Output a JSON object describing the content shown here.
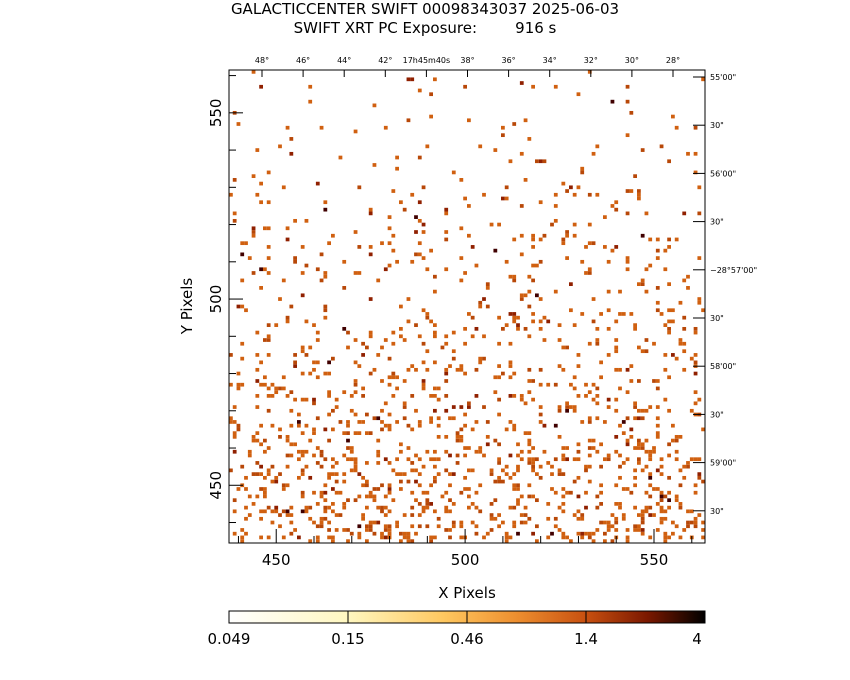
{
  "header": {
    "line1": "GALACTICCENTER SWIFT 00098343037 2025-06-03",
    "line2": "SWIFT XRT PC Exposure:        916 s"
  },
  "colorbar": {
    "tick_labels": [
      "0.049",
      "0.15",
      "0.46",
      "1.4",
      "4"
    ],
    "colors": [
      "#ffffff",
      "#fff3b0",
      "#ffd060",
      "#f0a030",
      "#d86818",
      "#a83a08",
      "#5a1000",
      "#000000"
    ]
  },
  "chart_data": {
    "type": "heatmap",
    "xlabel": "X Pixels",
    "ylabel": "Y Pixels",
    "xlim": [
      437.5,
      563.5
    ],
    "ylim": [
      434.5,
      561.5
    ],
    "x_ticks": [
      450,
      500,
      550
    ],
    "y_ticks": [
      450,
      500,
      550
    ],
    "top_ticks": [
      "48°",
      "46°",
      "44°",
      "42°",
      "17h45m40s",
      "38°",
      "36°",
      "34°",
      "32°",
      "30°",
      "28°"
    ],
    "right_ticks": [
      "55'00\"",
      "30\"",
      "56'00\"",
      "30\"",
      "−28°57'00\"",
      "30\"",
      "58'00\"",
      "30\"",
      "59'00\"",
      "30\""
    ],
    "grid": false,
    "pixel_colors": [
      "#d06010",
      "#b84808",
      "#902000",
      "#400000"
    ],
    "pixels": []
  }
}
